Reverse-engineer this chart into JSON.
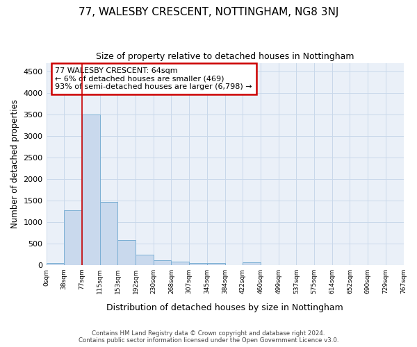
{
  "title": "77, WALESBY CRESCENT, NOTTINGHAM, NG8 3NJ",
  "subtitle": "Size of property relative to detached houses in Nottingham",
  "xlabel": "Distribution of detached houses by size in Nottingham",
  "ylabel": "Number of detached properties",
  "bar_color": "#c9d9ed",
  "bar_edge_color": "#7bafd4",
  "grid_color": "#c8d8ea",
  "background_color": "#eaf0f8",
  "bin_labels": [
    "0sqm",
    "38sqm",
    "77sqm",
    "115sqm",
    "153sqm",
    "192sqm",
    "230sqm",
    "268sqm",
    "307sqm",
    "345sqm",
    "384sqm",
    "422sqm",
    "460sqm",
    "499sqm",
    "537sqm",
    "575sqm",
    "614sqm",
    "652sqm",
    "690sqm",
    "729sqm",
    "767sqm"
  ],
  "bar_values": [
    40,
    1280,
    3500,
    1460,
    580,
    240,
    110,
    80,
    50,
    50,
    0,
    55,
    0,
    0,
    0,
    0,
    0,
    0,
    0,
    0,
    0
  ],
  "ylim": [
    0,
    4700
  ],
  "yticks": [
    0,
    500,
    1000,
    1500,
    2000,
    2500,
    3000,
    3500,
    4000,
    4500
  ],
  "vline_x": 2.0,
  "vline_color": "#cc0000",
  "annotation_box_text": "77 WALESBY CRESCENT: 64sqm\n← 6% of detached houses are smaller (469)\n93% of semi-detached houses are larger (6,798) →",
  "annotation_box_color": "#cc0000",
  "footer_line1": "Contains HM Land Registry data © Crown copyright and database right 2024.",
  "footer_line2": "Contains public sector information licensed under the Open Government Licence v3.0."
}
